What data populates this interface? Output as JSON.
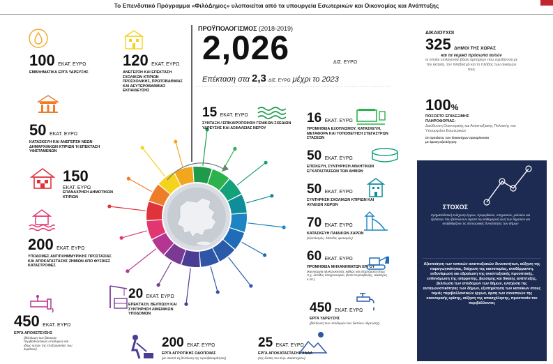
{
  "header": {
    "title": "Το Επενδυτικό Πρόγραμμα «ΦιλόΔημος» υλοποιείται από τα υπουργεία Εσωτερικών και Οικονομίας και Ανάπτυξης"
  },
  "budget": {
    "label": "ΠΡΟΫΠΟΛΟΓΙΣΜΟΣ",
    "years": "(2018-2019)",
    "value": "2,026",
    "unit": "ΔΙΣ. ΕΥΡΩ",
    "extension_prefix": "Επέκταση στα",
    "extension_value": "2,3",
    "extension_unit": "ΔΙΣ. ΕΥΡΩ",
    "extension_suffix": "μέχρι το 2023"
  },
  "unit_label": "ΕΚΑΤ. ΕΥΡΩ",
  "left_items": [
    {
      "value": "100",
      "label": "ΕΜΒΛΗΜΑΤΙΚΑ ΕΡΓΑ ΥΔΡΕΥΣΗΣ",
      "sub": "",
      "icon": "water-drop-icon",
      "color": "#f2a61e"
    },
    {
      "value": "120",
      "label": "ΑΝΕΓΕΡΣΗ ΚΑΙ ΕΠΕΚΤΑΣΗ ΣΧΟΛΙΚΩΝ ΚΤΙΡΙΩΝ ΠΡΟΣΧΟΛΙΚΗΣ, ΠΡΩΤΟΒΑΘΜΙΑΣ ΚΑΙ ΔΕΥΤΕΡΟΒΑΘΜΙΑΣ ΕΚΠΑΙΔΕΥΣΗΣ",
      "sub": "",
      "icon": "school-building-icon",
      "color": "#f5d21e"
    },
    {
      "value": "50",
      "label": "ΚΑΤΑΣΚΕΥΗ ΚΑΙ ΑΝΕΓΕΡΣΗ ΝΕΩΝ ΔΗΜΑΡΧΙΑΚΩΝ ΚΤΙΡΙΩΝ Ή ΕΠΕΚΤΑΣΗ ΥΦΙΣΤΑΜΕΝΩΝ",
      "sub": "",
      "icon": "town-hall-icon",
      "color": "#ee7d2a"
    },
    {
      "value": "150",
      "label": "ΕΠΑΝΑΧΡΗΣΗ ΔΗΜΟΤΙΚΩΝ ΚΤΙΡΙΩΝ",
      "sub": "",
      "icon": "house-icon",
      "color": "#e0323a"
    },
    {
      "value": "200",
      "label": "ΥΠΟΔΟΜΕΣ ΑΝΤΙΠΛΗΜΜΥΡΙΚΗΣ ΠΡΟΣΤΑΣΙΑΣ ΚΑΙ ΑΠΟΚΑΤΑΣΤΑΣΗΣ ΖΗΜΙΩΝ ΑΠΟ ΦΥΣΙΚΕΣ ΚΑΤΑΣΤΡΟΦΕΣ",
      "sub": "",
      "icon": "flood-icon",
      "color": "#e23672"
    },
    {
      "value": "450",
      "label": "ΕΡΓΑ ΑΠΟΧΕΤΕΥΣΗΣ",
      "sub": "(βελτίωση των βασικών περιβαλλοντικών υποδομών και ιδίως αυτών της επεξεργασίας των λυμάτων)",
      "icon": "pipe-icon",
      "color": "#b43592"
    },
    {
      "value": "20",
      "label": "ΕΠΕΚΤΑΣΗ, ΒΕΛΤΙΩΣΗ ΚΑΙ ΣΥΝΤΗΡΗΣΗ ΛΙΜΕΝΙΚΩΝ ΥΠΟΔΟΜΩΝ",
      "sub": "",
      "icon": "port-crane-icon",
      "color": "#7a3a94"
    },
    {
      "value": "200",
      "label": "ΕΡΓΑ ΑΓΡΟΤΙΚΗΣ ΟΔΟΠΟΙΙΑΣ",
      "sub": "(με σκοπό τη βελτίωση της προσβασιμότητας)",
      "icon": "road-worker-icon",
      "color": "#4a3b95"
    },
    {
      "value": "25",
      "label": "ΕΡΓΑ ΑΠΟΚΑΤΑΣΤΑΣΗΣ ΧΑΔΑ",
      "sub": "(της λίστας του Ευρ. Δικαστηρίου)",
      "icon": "landfill-icon",
      "color": "#2f56a6"
    }
  ],
  "right_items": [
    {
      "value": "15",
      "label": "ΣΥΝΤΑΞΗ / ΕΠΙΚΑΙΡΟΠΟΙΗΣΗ ΓΕΝΙΚΩΝ ΣΧΕΔΙΩΝ ΥΔΡΕΥΣΗΣ ΚΑΙ ΑΣΦΑΛΕΙΑΣ ΝΕΡΟΥ",
      "sub": "",
      "icon": "water-waves-icon",
      "color": "#1e9a4a"
    },
    {
      "value": "16",
      "label": "ΠΡΟΜΗΘΕΙΑ ΕΞΟΠΛΙΣΜΟΥ, ΚΑΤΑΣΚΕΥΗ, ΜΕΤΑΦΟΡΑ ΚΑΙ ΤΟΠΟΘΕΤΗΣΗ ΣΤΕΓΑΣΤΡΩΝ ΣΤΑΣΕΩΝ",
      "sub": "",
      "icon": "bus-stop-icon",
      "color": "#2bb24c"
    },
    {
      "value": "50",
      "label": "ΕΠΙΣΚΕΥΗ, ΣΥΝΤΗΡΗΣΗ ΑΘΛΗΤΙΚΩΝ ΕΓΚΑΤΑΣΤΑΣΕΩΝ ΤΩΝ ΔΗΜΩΝ",
      "sub": "",
      "icon": "stadium-icon",
      "color": "#13a07a"
    },
    {
      "value": "50",
      "label": "ΣΥΝΤΗΡΗΣΗ ΣΧΟΛΙΚΩΝ ΚΤΙΡΙΩΝ ΚΑΙ ΑΥΛΕΙΩΝ ΧΩΡΩΝ",
      "sub": "",
      "icon": "school-icon",
      "color": "#0f8d99"
    },
    {
      "value": "70",
      "label": "ΚΑΤΑΣΚΕΥΗ ΠΑΙΔΙΚΩΝ ΧΑΡΩΝ",
      "sub": "(εξοπλισμός, δάπεδα, φωτισμός)",
      "icon": "playground-icon",
      "color": "#1e84c3"
    },
    {
      "value": "60",
      "label": "ΠΡΟΜΗΘΕΙΑ ΜΗΧΑΝΗΜΑΤΩΝ ΕΡΓΟΥ",
      "sub": "(καινούργια ηλεκτροκίνητα, καθώς και εξαρτήματα όπως π.χ. λεπίδες αποχιονισμού, βυτία πυρόσβεσης, αλατιέρες κ.λπ.)",
      "icon": "bulldozer-icon",
      "color": "#1f6db8"
    },
    {
      "value": "450",
      "label": "ΕΡΓΑ ΥΔΡΕΥΣΗΣ",
      "sub": "(βελτίωση των υποδομών των δικτύων ύδρευσης)",
      "icon": "water-tap-icon",
      "color": "#2a5aa8"
    }
  ],
  "beneficiaries": {
    "title": "ΔΙΚΑΙΟΥΧΟΙ",
    "value": "325",
    "label": "ΔΗΜΟΙ ΤΗΣ ΧΩΡΑΣ",
    "label2": "και τα νομικά πρόσωπα αυτών",
    "desc": "οι οποίοι επιλέγονται βάσει κριτηρίων που σχετίζονται με την έκταση, τον πληθυσμό και το πλήθος των οικισμών τους"
  },
  "digital": {
    "value": "100",
    "pct": "%",
    "label": "ΠΟΣΟΣΤΟ ΕΠΙΛΕΞΙΜΗΣ ΠΛΗΡΟΦΟΡΙΑΣ:",
    "desc": "Διεύθυνση Οικονομικής και Αναπτυξιακής Πολιτικής του Υπουργείου Εσωτερικών",
    "note": "Οι προτάσεις των δικαιούχων προκρίνονται με άμεση αξιολόγηση"
  },
  "goal": {
    "title": "ΣΤΟΧΟΣ",
    "desc": "Χρηματοδοτική ενίσχυση έργων, προμηθειών, υπηρεσιών, μελετών και δράσεων που βελτιώνουν άμεσα την καθημερινή ζωή των δημοτών και αναβαθμίζουν τις λειτουργικές δυνατότητες των δήμων",
    "bold": "Αξιοποίηση των τοπικών αναπτυξιακών δυνατοτήτων, αύξηση της παραγωγικότητας, διάχυση της καινοτομίας, αναθέρμανση, ενδυνάμωση και εδραίωση της αναπτυξιακής προοπτικής, ενδυνάμωση της ισάρροπης, βιώσιμης και δίκαιης ανάπτυξης, βελτίωση των υποδομών των δήμων, ενίσχυση της ανταγωνιστικότητας των δήμων, εξυπηρέτηση των κατοίκων στους τομείς περιβαλλοντικών έργων, άρση των συνεπειών της οικονομικής κρίσης, αύξηση της απασχόλησης, προστασία του περιβάλλοντος"
  }
}
